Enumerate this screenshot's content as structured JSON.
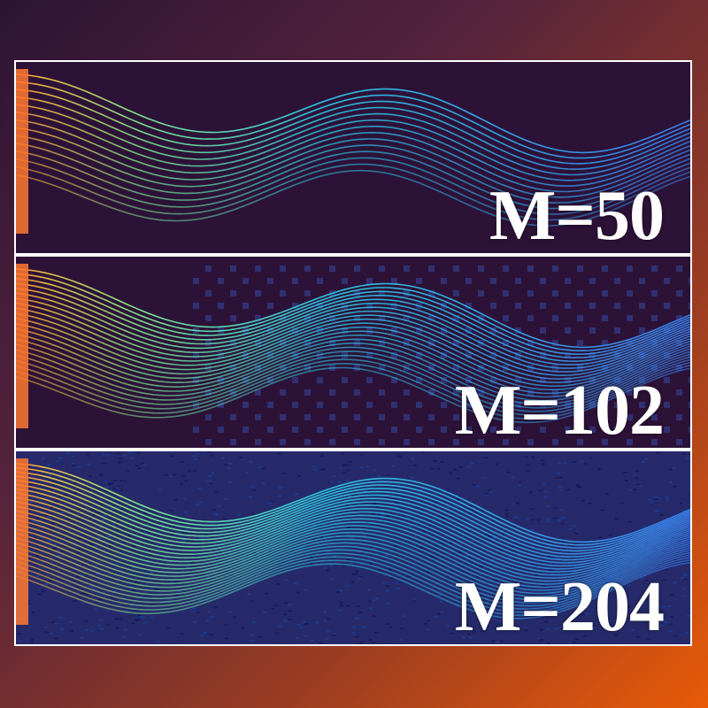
{
  "panels": [
    {
      "label": "M=50"
    },
    {
      "label": "M=102"
    },
    {
      "label": "M=204"
    }
  ],
  "colors": {
    "frame": "#ffffff",
    "panel_background": "#2d1238",
    "colormap": [
      "#3a7ee8",
      "#2cc6e0",
      "#7ee68a",
      "#f0c040",
      "#ff7a30"
    ]
  }
}
